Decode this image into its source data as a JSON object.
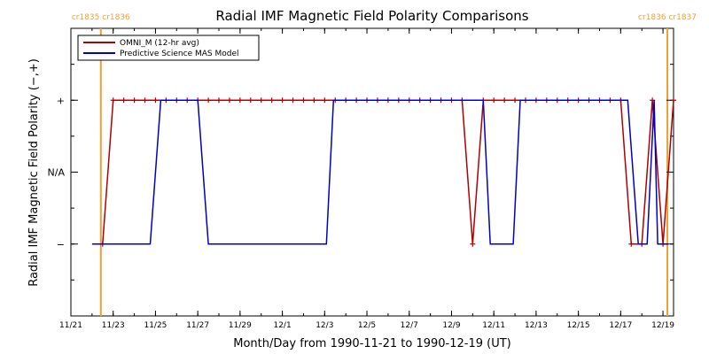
{
  "chart_data": {
    "type": "line",
    "title": "Radial IMF Magnetic Field Polarity Comparisons",
    "xlabel": "Month/Day from 1990-11-21 to 1990-12-19 (UT)",
    "ylabel": "Radial IMF Magnetic Field Polarity (−,+)",
    "x_unit": "date",
    "xlim": [
      "1990-11-21T00:00",
      "1990-12-19T12:00"
    ],
    "x_ticks": [
      "11/21",
      "11/23",
      "11/25",
      "11/27",
      "11/29",
      "12/1",
      "12/3",
      "12/5",
      "12/7",
      "12/9",
      "12/11",
      "12/13",
      "12/15",
      "12/17",
      "12/19"
    ],
    "x_tick_dates": [
      "1990-11-21",
      "1990-11-23",
      "1990-11-25",
      "1990-11-27",
      "1990-11-29",
      "1990-12-01",
      "1990-12-03",
      "1990-12-05",
      "1990-12-07",
      "1990-12-09",
      "1990-12-11",
      "1990-12-13",
      "1990-12-15",
      "1990-12-17",
      "1990-12-19"
    ],
    "y_categories": [
      "−",
      "N/A",
      "+"
    ],
    "ylim": [
      -2,
      2
    ],
    "grid": false,
    "legend_position": "top-left",
    "carrington_markers": [
      {
        "date": "1990-11-22T10:00",
        "label": "cr1835 cr1836"
      },
      {
        "date": "1990-12-19T05:00",
        "label": "cr1836 cr1837"
      }
    ],
    "series": [
      {
        "name": "OMNI_M (12-hr avg)",
        "color": "#b00000",
        "markers": "+",
        "points": [
          [
            "1990-11-22T12:00",
            -1
          ],
          [
            "1990-11-23T00:00",
            1
          ],
          [
            "1990-11-23T12:00",
            1
          ],
          [
            "1990-11-24T00:00",
            1
          ],
          [
            "1990-11-24T12:00",
            1
          ],
          [
            "1990-11-25T00:00",
            1
          ],
          [
            "1990-11-25T12:00",
            1
          ],
          [
            "1990-11-26T00:00",
            1
          ],
          [
            "1990-11-26T12:00",
            1
          ],
          [
            "1990-11-27T00:00",
            1
          ],
          [
            "1990-11-27T12:00",
            1
          ],
          [
            "1990-11-28T00:00",
            1
          ],
          [
            "1990-11-28T12:00",
            1
          ],
          [
            "1990-11-29T00:00",
            1
          ],
          [
            "1990-11-29T12:00",
            1
          ],
          [
            "1990-11-30T00:00",
            1
          ],
          [
            "1990-11-30T12:00",
            1
          ],
          [
            "1990-12-01T00:00",
            1
          ],
          [
            "1990-12-01T12:00",
            1
          ],
          [
            "1990-12-02T00:00",
            1
          ],
          [
            "1990-12-02T12:00",
            1
          ],
          [
            "1990-12-03T00:00",
            1
          ],
          [
            "1990-12-03T12:00",
            1
          ],
          [
            "1990-12-04T00:00",
            1
          ],
          [
            "1990-12-04T12:00",
            1
          ],
          [
            "1990-12-05T00:00",
            1
          ],
          [
            "1990-12-05T12:00",
            1
          ],
          [
            "1990-12-06T00:00",
            1
          ],
          [
            "1990-12-06T12:00",
            1
          ],
          [
            "1990-12-07T00:00",
            1
          ],
          [
            "1990-12-07T12:00",
            1
          ],
          [
            "1990-12-08T00:00",
            1
          ],
          [
            "1990-12-08T12:00",
            1
          ],
          [
            "1990-12-09T00:00",
            1
          ],
          [
            "1990-12-09T12:00",
            1
          ],
          [
            "1990-12-10T00:00",
            -1
          ],
          [
            "1990-12-10T12:00",
            1
          ],
          [
            "1990-12-11T00:00",
            1
          ],
          [
            "1990-12-11T12:00",
            1
          ],
          [
            "1990-12-12T00:00",
            1
          ],
          [
            "1990-12-12T12:00",
            1
          ],
          [
            "1990-12-13T00:00",
            1
          ],
          [
            "1990-12-13T12:00",
            1
          ],
          [
            "1990-12-14T00:00",
            1
          ],
          [
            "1990-12-14T12:00",
            1
          ],
          [
            "1990-12-15T00:00",
            1
          ],
          [
            "1990-12-15T12:00",
            1
          ],
          [
            "1990-12-16T00:00",
            1
          ],
          [
            "1990-12-16T12:00",
            1
          ],
          [
            "1990-12-17T00:00",
            1
          ],
          [
            "1990-12-17T12:00",
            -1
          ],
          [
            "1990-12-18T00:00",
            -1
          ],
          [
            "1990-12-18T12:00",
            1
          ],
          [
            "1990-12-19T00:00",
            -1
          ],
          [
            "1990-12-19T12:00",
            1
          ]
        ]
      },
      {
        "name": "Predictive Science MAS Model",
        "color": "#0000c8",
        "markers": "none",
        "points": [
          [
            "1990-11-22T00:00",
            -1
          ],
          [
            "1990-11-24T18:00",
            -1
          ],
          [
            "1990-11-25T06:00",
            1
          ],
          [
            "1990-11-27T00:00",
            1
          ],
          [
            "1990-11-27T12:00",
            -1
          ],
          [
            "1990-12-03T02:00",
            -1
          ],
          [
            "1990-12-03T10:00",
            1
          ],
          [
            "1990-12-09T12:00",
            1
          ],
          [
            "1990-12-10T12:00",
            1
          ],
          [
            "1990-12-10T20:00",
            -1
          ],
          [
            "1990-12-11T22:00",
            -1
          ],
          [
            "1990-12-12T06:00",
            1
          ],
          [
            "1990-12-17T08:00",
            1
          ],
          [
            "1990-12-17T20:00",
            -1
          ],
          [
            "1990-12-18T06:00",
            -1
          ],
          [
            "1990-12-18T14:00",
            1
          ],
          [
            "1990-12-18T18:00",
            -1
          ],
          [
            "1990-12-19T06:00",
            -1
          ]
        ]
      }
    ]
  }
}
